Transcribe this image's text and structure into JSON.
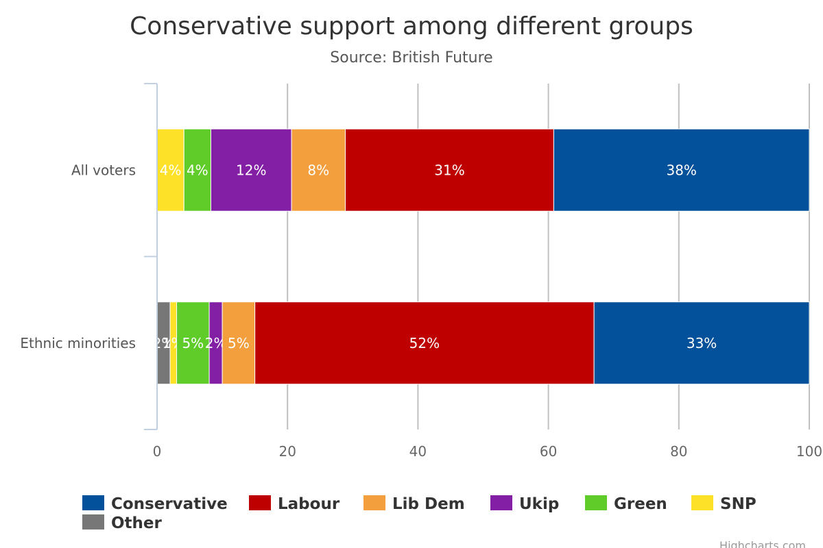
{
  "chart_data": {
    "type": "bar",
    "orientation": "horizontal",
    "stacking": "percent",
    "title": "Conservative support among different groups",
    "subtitle": "Source: British Future",
    "categories": [
      "All voters",
      "Ethnic minorities"
    ],
    "x_ticks": [
      "0",
      "20",
      "40",
      "60",
      "80",
      "100"
    ],
    "xlim": [
      0,
      100
    ],
    "grid": true,
    "legend_position": "bottom",
    "series": [
      {
        "name": "Other",
        "color": "#777777",
        "values": [
          0,
          2
        ],
        "labels": [
          "0%",
          "2%"
        ]
      },
      {
        "name": "SNP",
        "color": "#fde128",
        "values": [
          4,
          1
        ],
        "labels": [
          "4%",
          "1%"
        ]
      },
      {
        "name": "Green",
        "color": "#5fcc2a",
        "values": [
          4,
          5
        ],
        "labels": [
          "4%",
          "5%"
        ]
      },
      {
        "name": "Ukip",
        "color": "#831fa5",
        "values": [
          12,
          2
        ],
        "labels": [
          "12%",
          "2%"
        ]
      },
      {
        "name": "Lib Dem",
        "color": "#f39f3d",
        "values": [
          8,
          5
        ],
        "labels": [
          "8%",
          "5%"
        ]
      },
      {
        "name": "Labour",
        "color": "#be0000",
        "values": [
          31,
          52
        ],
        "labels": [
          "31%",
          "52%"
        ]
      },
      {
        "name": "Conservative",
        "color": "#03519a",
        "values": [
          38,
          33
        ],
        "labels": [
          "38%",
          "33%"
        ]
      }
    ],
    "legend": [
      "Conservative",
      "Labour",
      "Lib Dem",
      "Ukip",
      "Green",
      "SNP",
      "Other"
    ]
  },
  "credits": "Highcharts.com"
}
